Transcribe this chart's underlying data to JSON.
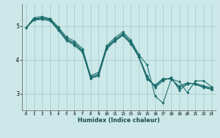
{
  "xlabel": "Humidex (Indice chaleur)",
  "bg_color": "#cce8e8",
  "grid_color": "#a0c8c8",
  "line_color": "#1a6b6b",
  "marker": "D",
  "marker_size": 2.2,
  "line_width": 0.8,
  "xlim": [
    -0.5,
    23.5
  ],
  "ylim": [
    2.5,
    5.65
  ],
  "yticks": [
    3,
    4,
    5
  ],
  "xtick_labels": [
    "0",
    "1",
    "2",
    "3",
    "4",
    "5",
    "6",
    "7",
    "8",
    "9",
    "10",
    "11",
    "12",
    "13",
    "14",
    "15",
    "16",
    "17",
    "18",
    "19",
    "20",
    "21",
    "22",
    "23"
  ],
  "series": [
    [
      4.95,
      5.25,
      5.28,
      5.22,
      4.97,
      4.68,
      4.55,
      4.33,
      3.53,
      3.63,
      4.42,
      4.65,
      4.83,
      4.58,
      4.15,
      3.85,
      2.92,
      2.72,
      3.43,
      3.35,
      3.03,
      3.37,
      3.38,
      3.2
    ],
    [
      4.95,
      5.22,
      5.25,
      5.2,
      4.93,
      4.63,
      4.5,
      4.28,
      3.5,
      3.58,
      4.38,
      4.6,
      4.78,
      4.53,
      4.1,
      3.52,
      3.18,
      3.38,
      3.48,
      3.1,
      3.28,
      3.3,
      3.23,
      3.17
    ],
    [
      4.95,
      5.2,
      5.22,
      5.18,
      4.9,
      4.6,
      4.47,
      4.25,
      3.47,
      3.55,
      4.35,
      4.57,
      4.75,
      4.5,
      4.08,
      3.47,
      3.22,
      3.42,
      3.45,
      3.17,
      3.3,
      3.28,
      3.2,
      3.14
    ],
    [
      4.95,
      5.18,
      5.2,
      5.15,
      4.88,
      4.57,
      4.43,
      4.22,
      3.45,
      3.52,
      4.32,
      4.55,
      4.72,
      4.47,
      4.07,
      3.42,
      3.25,
      3.45,
      3.42,
      3.22,
      3.32,
      3.27,
      3.18,
      3.12
    ]
  ]
}
